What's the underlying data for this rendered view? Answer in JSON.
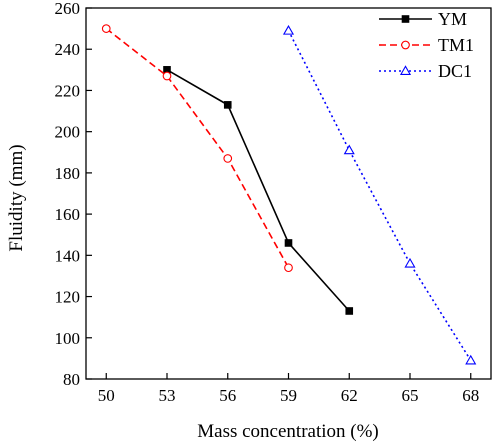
{
  "chart_data": {
    "type": "line",
    "xlabel": "Mass concentration (%)",
    "ylabel": "Fluidity (mm)",
    "xlim": [
      49,
      69
    ],
    "ylim": [
      80,
      260
    ],
    "xticks": [
      50,
      53,
      56,
      59,
      62,
      65,
      68
    ],
    "yticks": [
      80,
      100,
      120,
      140,
      160,
      180,
      200,
      220,
      240,
      260
    ],
    "grid": false,
    "legend_position": "top-right",
    "series": [
      {
        "name": "YM",
        "color": "#000000",
        "line_style": "solid",
        "marker": "filled-square",
        "points": [
          {
            "x": 53,
            "y": 230
          },
          {
            "x": 56,
            "y": 213
          },
          {
            "x": 59,
            "y": 146
          },
          {
            "x": 62,
            "y": 113
          }
        ]
      },
      {
        "name": "TM1",
        "color": "#ff0000",
        "line_style": "dashed",
        "marker": "open-circle",
        "points": [
          {
            "x": 50,
            "y": 250
          },
          {
            "x": 53,
            "y": 227
          },
          {
            "x": 56,
            "y": 187
          },
          {
            "x": 59,
            "y": 134
          }
        ]
      },
      {
        "name": "DC1",
        "color": "#0000ff",
        "line_style": "dotted",
        "marker": "open-triangle",
        "points": [
          {
            "x": 59,
            "y": 249
          },
          {
            "x": 62,
            "y": 191
          },
          {
            "x": 65,
            "y": 136
          },
          {
            "x": 68,
            "y": 89
          }
        ]
      }
    ]
  }
}
